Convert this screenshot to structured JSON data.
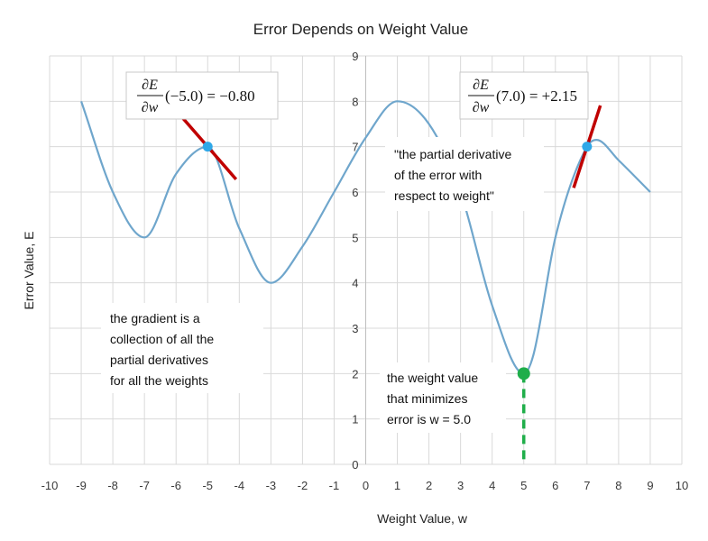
{
  "chart_data": {
    "type": "line",
    "title": "Error Depends on Weight Value",
    "xlabel": "Weight Value, w",
    "ylabel": "Error Value, E",
    "xlim": [
      -10,
      10
    ],
    "ylim": [
      0,
      9
    ],
    "x_ticks": [
      -10,
      -9,
      -8,
      -7,
      -6,
      -5,
      -4,
      -3,
      -2,
      -1,
      0,
      1,
      2,
      3,
      4,
      5,
      6,
      7,
      8,
      9,
      10
    ],
    "y_ticks": [
      0,
      1,
      2,
      3,
      4,
      5,
      6,
      7,
      8,
      9
    ],
    "grid": true,
    "colors": {
      "curve": "#6fa6cc",
      "tangent": "#c00000",
      "point": "#2fa8e8",
      "minimum": "#1fae4a",
      "grid": "#d9d9d9"
    },
    "series": [
      {
        "x": [
          -9,
          -8,
          -7,
          -6,
          -5,
          -4,
          -3,
          -2,
          -1,
          0,
          1,
          2,
          3,
          4,
          5,
          5.3,
          6,
          7,
          7.3,
          8,
          9
        ],
        "y": [
          8.0,
          6.0,
          5.0,
          6.4,
          7.0,
          5.2,
          4.0,
          4.8,
          6.0,
          7.2,
          8.0,
          7.5,
          6.0,
          3.5,
          2.0,
          2.4,
          5.0,
          7.0,
          7.15,
          6.7,
          6.0
        ]
      }
    ],
    "tangent_points": [
      {
        "x": -5.0,
        "y": 7.0,
        "slope": -0.8
      },
      {
        "x": 7.0,
        "y": 7.0,
        "slope": 2.15
      }
    ],
    "minimum_point": {
      "x": 5.0,
      "y": 2.0
    },
    "annotations": {
      "deriv_left": {
        "numer": "∂E",
        "denom": "∂w",
        "expr": "(−5.0) = −0.80"
      },
      "deriv_right": {
        "numer": "∂E",
        "denom": "∂w",
        "expr": "(7.0) = +2.15"
      },
      "partial_note": [
        "\"the partial derivative",
        "of the error with",
        "respect to weight\""
      ],
      "gradient_note": [
        "the gradient is a",
        "collection of all the",
        "partial derivatives",
        "for all the weights"
      ],
      "minimum_note": [
        "the weight value",
        "that minimizes",
        "error  is w = 5.0"
      ]
    }
  }
}
